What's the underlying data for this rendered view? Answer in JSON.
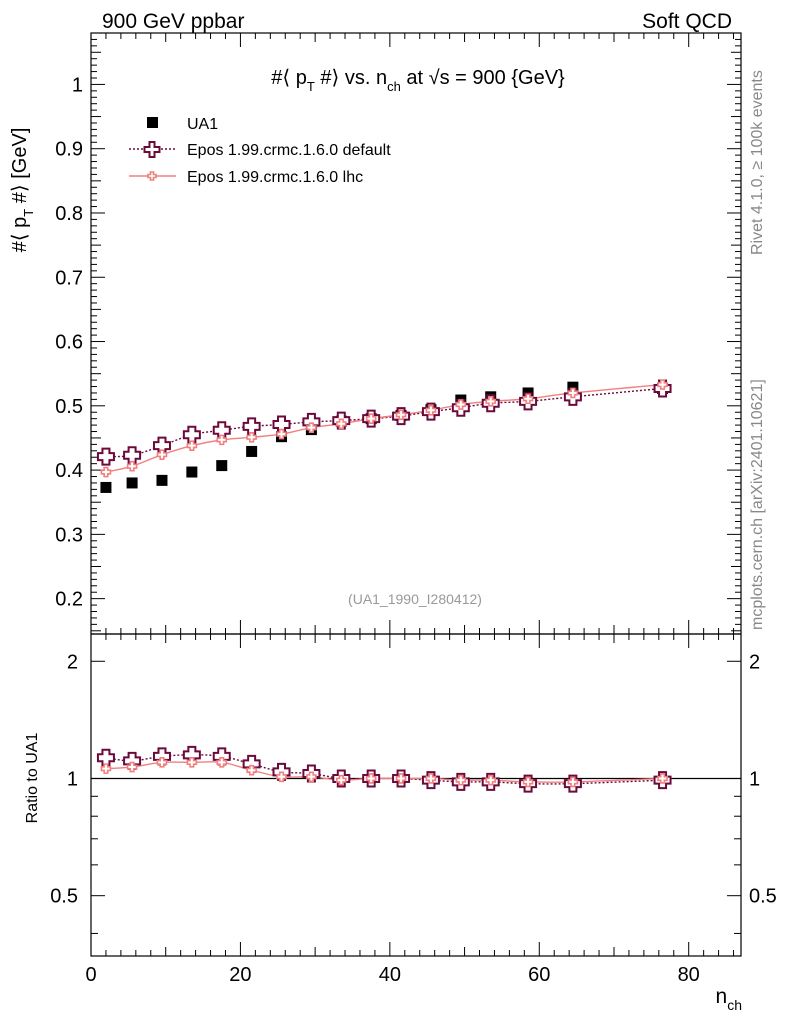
{
  "header": {
    "left": "900 GeV ppbar",
    "right": "Soft QCD"
  },
  "side": {
    "top": "Rivet 4.1.0, ≥ 100k events",
    "bottom": "mcplots.cern.ch [arXiv:2401.10621]"
  },
  "chart_data": [
    {
      "type": "scatter",
      "title_parts": {
        "prefix": "#⟨ p",
        "sub1": "T",
        "mid": " #⟩ vs. n",
        "sub2": "ch",
        "suffix": " at √s = 900 {GeV}"
      },
      "ylabel_parts": {
        "prefix": "#⟨ p",
        "sub": "T",
        "suffix": " #⟩ [GeV]"
      },
      "xlim": [
        0,
        87
      ],
      "ylim": [
        0.145,
        1.08
      ],
      "yticks": [
        0.2,
        0.3,
        0.4,
        0.5,
        0.6,
        0.7,
        0.8,
        0.9,
        1
      ],
      "ytick_labels": [
        "0.2",
        "0.3",
        "0.4",
        "0.5",
        "0.6",
        "0.7",
        "0.8",
        "0.9",
        "1"
      ],
      "watermark": "(UA1_1990_I280412)",
      "legend_position": "top-left",
      "series": [
        {
          "name": "UA1",
          "marker": "square",
          "color": "#000000",
          "x": [
            2,
            5.5,
            9.5,
            13.5,
            17.5,
            21.5,
            25.5,
            29.5,
            33.5,
            37.5,
            41.5,
            45.5,
            49.5,
            53.5,
            58.5,
            64.5,
            76.5
          ],
          "y": [
            0.373,
            0.38,
            0.384,
            0.397,
            0.407,
            0.429,
            0.452,
            0.463,
            0.476,
            0.48,
            0.485,
            0.494,
            0.509,
            0.514,
            0.52,
            0.529,
            0.527
          ]
        },
        {
          "name": "Epos 1.99.crmc.1.6.0 default",
          "marker": "open-cross",
          "line": "dotted",
          "color": "#6b0a3a",
          "x": [
            2,
            5.5,
            9.5,
            13.5,
            17.5,
            21.5,
            25.5,
            29.5,
            33.5,
            37.5,
            41.5,
            45.5,
            49.5,
            53.5,
            58.5,
            64.5,
            76.5
          ],
          "y": [
            0.421,
            0.423,
            0.438,
            0.455,
            0.462,
            0.468,
            0.471,
            0.475,
            0.477,
            0.48,
            0.484,
            0.491,
            0.497,
            0.504,
            0.507,
            0.514,
            0.527
          ]
        },
        {
          "name": "Epos 1.99.crmc.1.6.0 lhc",
          "marker": "small-cross",
          "line": "solid",
          "color": "#f08080",
          "x": [
            2,
            5.5,
            9.5,
            13.5,
            17.5,
            21.5,
            25.5,
            29.5,
            33.5,
            37.5,
            41.5,
            45.5,
            49.5,
            53.5,
            58.5,
            64.5,
            76.5
          ],
          "y": [
            0.397,
            0.406,
            0.424,
            0.438,
            0.447,
            0.451,
            0.456,
            0.466,
            0.472,
            0.48,
            0.486,
            0.493,
            0.502,
            0.507,
            0.511,
            0.52,
            0.533
          ]
        }
      ]
    },
    {
      "type": "scatter",
      "ylabel": "Ratio to UA1",
      "xlabel": "n",
      "xlabel_sub": "ch",
      "xlim": [
        0,
        87
      ],
      "ylim": [
        0.35,
        2.35
      ],
      "xticks": [
        0,
        20,
        40,
        60,
        80
      ],
      "xtick_labels": [
        "0",
        "20",
        "40",
        "60",
        "80"
      ],
      "yticks": [
        0.5,
        1,
        2
      ],
      "ytick_labels": [
        "0.5",
        "1",
        "2"
      ],
      "reference_line": 1,
      "series": [
        {
          "name": "Epos 1.99.crmc.1.6.0 default",
          "x": [
            2,
            5.5,
            9.5,
            13.5,
            17.5,
            21.5,
            25.5,
            29.5,
            33.5,
            37.5,
            41.5,
            45.5,
            49.5,
            53.5,
            58.5,
            64.5,
            76.5
          ],
          "y": [
            1.13,
            1.11,
            1.14,
            1.15,
            1.14,
            1.09,
            1.04,
            1.03,
            1.0,
            1.0,
            1.0,
            0.99,
            0.98,
            0.98,
            0.97,
            0.97,
            0.99
          ]
        },
        {
          "name": "Epos 1.99.crmc.1.6.0 lhc",
          "x": [
            2,
            5.5,
            9.5,
            13.5,
            17.5,
            21.5,
            25.5,
            29.5,
            33.5,
            37.5,
            41.5,
            45.5,
            49.5,
            53.5,
            58.5,
            64.5,
            76.5
          ],
          "y": [
            1.06,
            1.07,
            1.1,
            1.1,
            1.1,
            1.05,
            1.01,
            1.01,
            0.99,
            1.0,
            1.0,
            1.0,
            0.99,
            0.99,
            0.98,
            0.98,
            1.0
          ]
        }
      ]
    }
  ]
}
